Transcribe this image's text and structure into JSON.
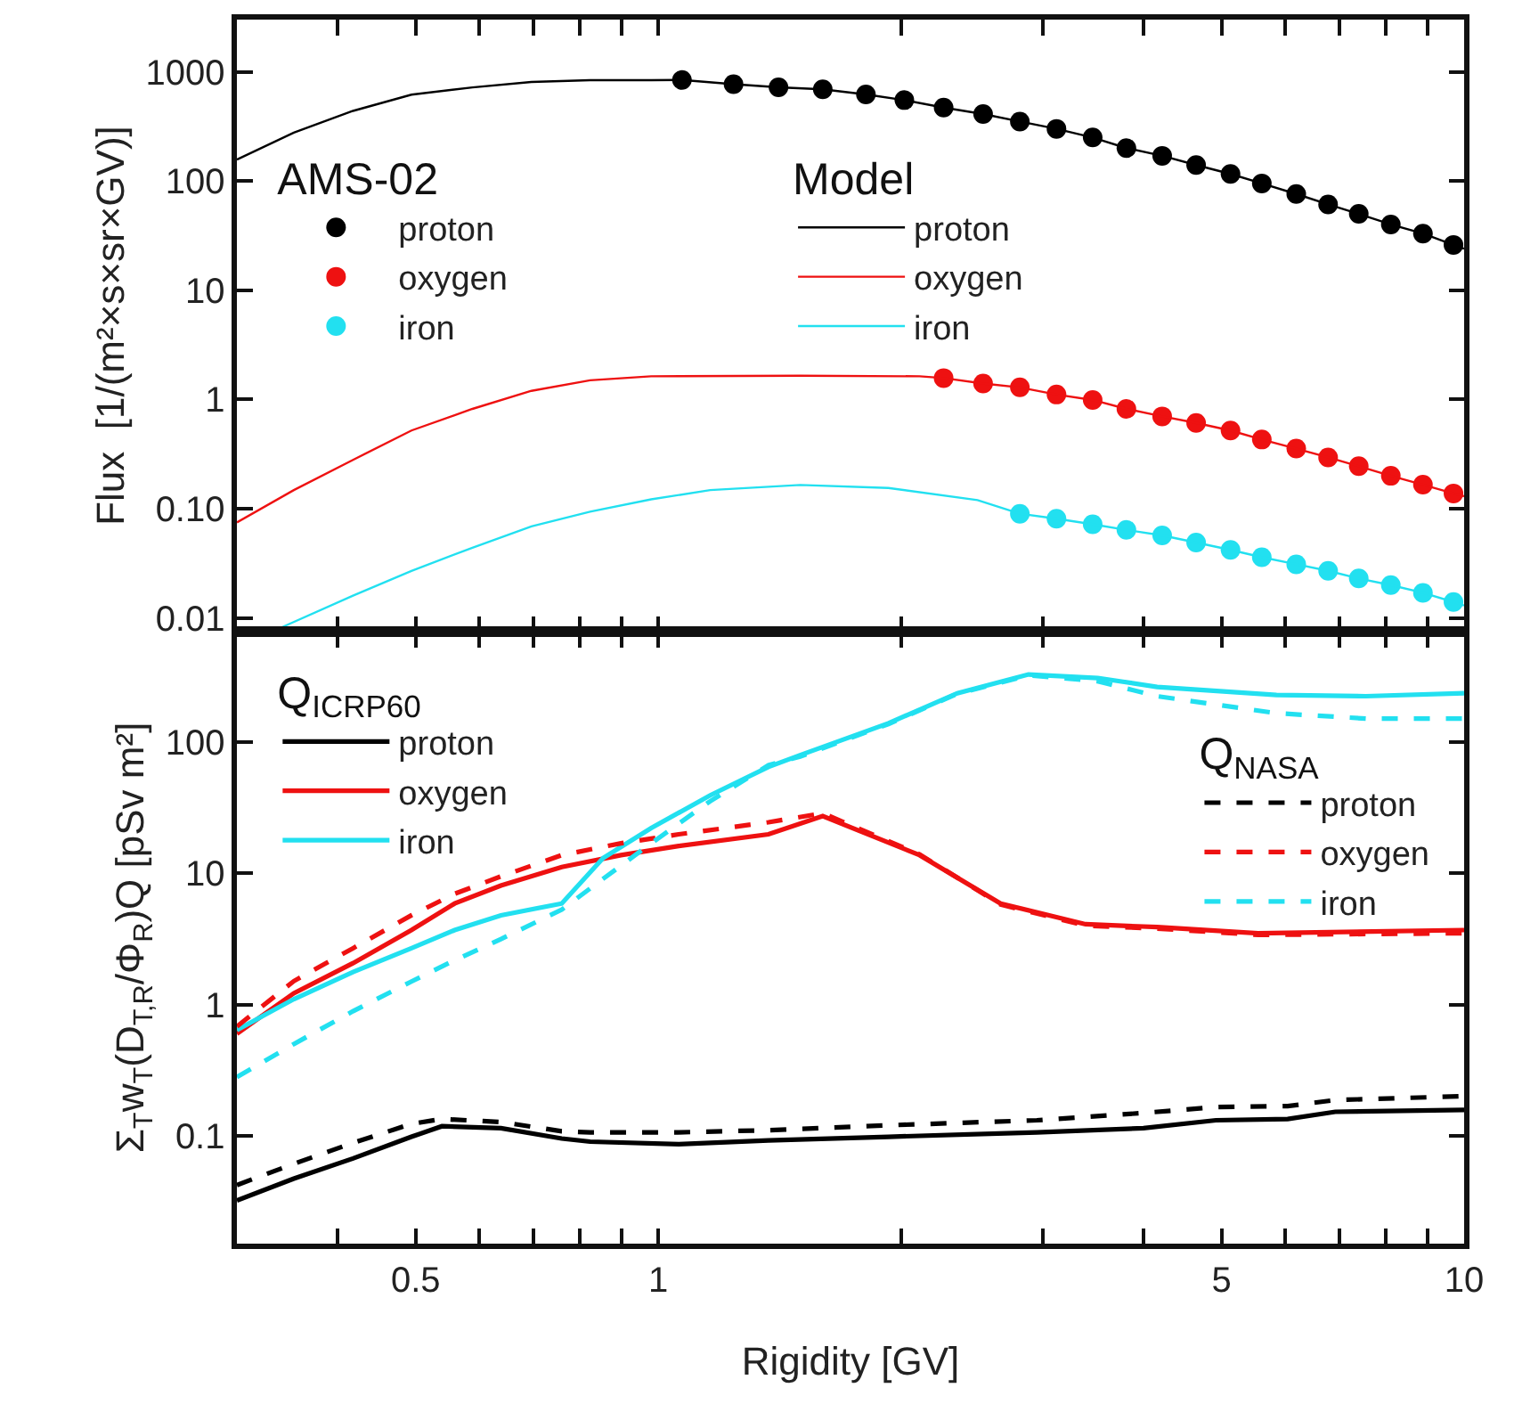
{
  "chart_data": [
    {
      "type": "scatter",
      "ylabel": "Flux  [1/(m²×s×sr×GV)]",
      "log": "xy",
      "xlim": [
        0.3,
        10
      ],
      "ylim": [
        0.0075,
        3000
      ],
      "xticks": [
        {
          "value": 0.3,
          "label": null
        },
        {
          "value": 0.4,
          "label": null
        },
        0.5,
        {
          "value": 0.6,
          "label": null
        },
        {
          "value": 0.7,
          "label": null
        },
        {
          "value": 0.8,
          "label": null
        },
        {
          "value": 0.9,
          "label": null
        },
        1,
        {
          "value": 2,
          "label": null
        },
        {
          "value": 3,
          "label": null
        },
        {
          "value": 4,
          "label": null
        },
        5,
        {
          "value": 6,
          "label": null
        },
        {
          "value": 7,
          "label": null
        },
        {
          "value": 8,
          "label": null
        },
        {
          "value": 9,
          "label": null
        },
        10
      ],
      "yticks": [
        1000,
        100,
        10,
        1,
        {
          "value": 0.1,
          "label": "0.10"
        },
        0.01
      ],
      "tick_labels": "y",
      "legend": [
        "left",
        "center"
      ],
      "legend_title": [
        "AMS-02",
        "Model"
      ],
      "series": [
        {
          "name": "proton",
          "type": "scatter",
          "marker": "circle",
          "color": "#000000",
          "x": [
            1.07,
            1.24,
            1.41,
            1.6,
            1.81,
            2.02,
            2.26,
            2.53,
            2.81,
            3.12,
            3.46,
            3.81,
            4.22,
            4.65,
            5.13,
            5.61,
            6.19,
            6.78,
            7.4,
            8.11,
            8.89,
            9.7
          ],
          "values": [
            840,
            770,
            720,
            690,
            620,
            550,
            470,
            410,
            350,
            300,
            250,
            200,
            170,
            140,
            116,
            95,
            76,
            61,
            50,
            40,
            33,
            26
          ]
        },
        {
          "name": "oxygen",
          "type": "scatter",
          "marker": "circle",
          "color": "#ee1111",
          "x": [
            2.26,
            2.53,
            2.81,
            3.12,
            3.46,
            3.81,
            4.22,
            4.65,
            5.13,
            5.61,
            6.19,
            6.78,
            7.4,
            8.11,
            8.89,
            9.7
          ],
          "values": [
            1.57,
            1.4,
            1.29,
            1.11,
            0.99,
            0.82,
            0.7,
            0.61,
            0.52,
            0.43,
            0.355,
            0.295,
            0.245,
            0.2,
            0.166,
            0.138
          ]
        },
        {
          "name": "iron",
          "type": "scatter",
          "marker": "circle",
          "color": "#22e0f0",
          "x": [
            2.81,
            3.12,
            3.46,
            3.81,
            4.22,
            4.65,
            5.13,
            5.61,
            6.19,
            6.78,
            7.4,
            8.11,
            8.89,
            9.7
          ],
          "values": [
            0.09,
            0.081,
            0.072,
            0.064,
            0.057,
            0.049,
            0.042,
            0.036,
            0.031,
            0.027,
            0.023,
            0.02,
            0.017,
            0.014
          ]
        },
        {
          "name": "proton",
          "type": "line",
          "line_style": "solid",
          "marker": "none",
          "color": "#000000",
          "x": [
            0.3,
            0.353,
            0.418,
            0.494,
            0.588,
            0.696,
            0.823,
            0.98,
            1.07,
            1.24,
            1.41,
            1.6,
            1.81,
            2.02,
            2.26,
            2.53,
            2.81,
            3.12,
            3.46,
            3.81,
            4.22,
            4.65,
            5.13,
            5.61,
            6.19,
            6.78,
            7.4,
            8.11,
            8.89,
            9.7,
            10
          ],
          "values": [
            157,
            277,
            438,
            617,
            718,
            805,
            836,
            836,
            840,
            770,
            720,
            690,
            620,
            550,
            470,
            410,
            350,
            300,
            250,
            200,
            170,
            140,
            116,
            95,
            76,
            61,
            50,
            40,
            33,
            26,
            24
          ]
        },
        {
          "name": "oxygen",
          "type": "line",
          "line_style": "solid",
          "marker": "none",
          "color": "#ee1111",
          "x": [
            0.3,
            0.353,
            0.418,
            0.494,
            0.588,
            0.696,
            0.823,
            0.98,
            1.5,
            2.11,
            2.26,
            2.53,
            2.81,
            3.12,
            3.46,
            3.81,
            4.22,
            4.65,
            5.13,
            5.61,
            6.19,
            6.78,
            7.4,
            8.11,
            8.89,
            9.7,
            10
          ],
          "values": [
            0.075,
            0.148,
            0.28,
            0.52,
            0.82,
            1.2,
            1.5,
            1.63,
            1.65,
            1.63,
            1.57,
            1.4,
            1.29,
            1.11,
            0.99,
            0.82,
            0.7,
            0.61,
            0.52,
            0.43,
            0.355,
            0.295,
            0.245,
            0.2,
            0.166,
            0.138,
            0.13
          ]
        },
        {
          "name": "iron",
          "type": "line",
          "line_style": "solid",
          "marker": "none",
          "color": "#22e0f0",
          "x": [
            0.337,
            0.418,
            0.494,
            0.588,
            0.696,
            0.823,
            0.98,
            1.16,
            1.5,
            1.93,
            2.49,
            2.81,
            3.12,
            3.46,
            3.81,
            4.22,
            4.65,
            5.13,
            5.61,
            6.19,
            6.78,
            7.4,
            8.11,
            8.89,
            9.7,
            10
          ],
          "values": [
            0.0079,
            0.016,
            0.027,
            0.044,
            0.069,
            0.094,
            0.122,
            0.148,
            0.165,
            0.155,
            0.12,
            0.09,
            0.081,
            0.072,
            0.064,
            0.057,
            0.049,
            0.042,
            0.036,
            0.031,
            0.027,
            0.023,
            0.02,
            0.017,
            0.014,
            0.013
          ]
        }
      ]
    },
    {
      "type": "line",
      "xlabel": "Rigidity [GV]",
      "ylabel": "Σ$_{T}$w$_{T}$(D$_{T,R}$/Φ$_{R}$)Q [pSv m²]",
      "log": "xy",
      "xlim": [
        0.3,
        10
      ],
      "ylim": [
        0.015,
        700
      ],
      "xticks": [
        {
          "value": 0.3,
          "label": null
        },
        {
          "value": 0.4,
          "label": null
        },
        0.5,
        {
          "value": 0.6,
          "label": null
        },
        {
          "value": 0.7,
          "label": null
        },
        {
          "value": 0.8,
          "label": null
        },
        {
          "value": 0.9,
          "label": null
        },
        1,
        {
          "value": 2,
          "label": null
        },
        {
          "value": 3,
          "label": null
        },
        {
          "value": 4,
          "label": null
        },
        5,
        {
          "value": 6,
          "label": null
        },
        {
          "value": 7,
          "label": null
        },
        {
          "value": 8,
          "label": null
        },
        {
          "value": 9,
          "label": null
        },
        10
      ],
      "yticks": [
        100,
        10,
        1,
        0.1
      ],
      "legend": [
        "top left",
        "top right"
      ],
      "legend_title": [
        "Q$_{ICRP60}$",
        "Q$_{NASA}$"
      ],
      "series": [
        {
          "name": "proton",
          "line_style": "solid",
          "color": "#000000",
          "x": [
            0.3,
            0.353,
            0.418,
            0.494,
            0.539,
            0.638,
            0.759,
            0.823,
            1.06,
            1.37,
            1.93,
            2.95,
            4.0,
            4.92,
            6.04,
            6.92,
            10
          ],
          "values": [
            0.032,
            0.047,
            0.067,
            0.098,
            0.118,
            0.114,
            0.095,
            0.09,
            0.086,
            0.092,
            0.098,
            0.106,
            0.114,
            0.131,
            0.134,
            0.152,
            0.157
          ]
        },
        {
          "name": "oxygen",
          "line_style": "solid",
          "color": "#ee1111",
          "x": [
            0.3,
            0.353,
            0.418,
            0.494,
            0.559,
            0.638,
            0.759,
            0.899,
            1.06,
            1.37,
            1.6,
            2.11,
            2.66,
            3.39,
            4.16,
            5.55,
            10
          ],
          "values": [
            0.6,
            1.22,
            2.07,
            3.7,
            5.9,
            8.1,
            11.2,
            13.8,
            16.2,
            19.9,
            27.4,
            13.8,
            5.9,
            4.1,
            3.9,
            3.5,
            3.7
          ]
        },
        {
          "name": "iron",
          "line_style": "solid",
          "color": "#22e0f0",
          "x": [
            0.3,
            0.353,
            0.418,
            0.494,
            0.559,
            0.638,
            0.759,
            0.854,
            0.98,
            1.16,
            1.37,
            1.5,
            1.93,
            2.35,
            2.88,
            3.51,
            4.16,
            5.85,
            7.55,
            10
          ],
          "values": [
            0.64,
            1.1,
            1.77,
            2.69,
            3.7,
            4.8,
            5.9,
            13.1,
            22.2,
            39.5,
            65,
            80,
            140,
            237,
            330,
            310,
            265,
            230,
            225,
            237
          ]
        },
        {
          "name": "proton",
          "line_style": "dashed",
          "color": "#000000",
          "x": [
            0.3,
            0.353,
            0.418,
            0.494,
            0.539,
            0.638,
            0.759,
            0.823,
            1.06,
            1.37,
            1.93,
            2.95,
            4.0,
            4.92,
            6.04,
            6.92,
            10
          ],
          "values": [
            0.042,
            0.061,
            0.088,
            0.123,
            0.134,
            0.127,
            0.108,
            0.106,
            0.106,
            0.11,
            0.12,
            0.131,
            0.149,
            0.165,
            0.168,
            0.187,
            0.2
          ]
        },
        {
          "name": "oxygen",
          "line_style": "dashed",
          "color": "#ee1111",
          "x": [
            0.3,
            0.353,
            0.418,
            0.494,
            0.559,
            0.638,
            0.759,
            0.899,
            1.06,
            1.37,
            1.6,
            2.11,
            2.66,
            3.39,
            4.16,
            5.55,
            10
          ],
          "values": [
            0.68,
            1.51,
            2.69,
            4.8,
            7.0,
            9.5,
            13.8,
            17.0,
            19.9,
            24.6,
            28.8,
            14.0,
            5.8,
            4.0,
            3.8,
            3.4,
            3.5
          ]
        },
        {
          "name": "iron",
          "line_style": "dashed",
          "color": "#22e0f0",
          "x": [
            0.3,
            0.353,
            0.418,
            0.494,
            0.559,
            0.638,
            0.759,
            0.854,
            0.98,
            1.16,
            1.37,
            1.5,
            1.93,
            2.35,
            2.88,
            3.51,
            4.16,
            5.85,
            7.55,
            10
          ],
          "values": [
            0.28,
            0.5,
            0.89,
            1.5,
            2.18,
            3.16,
            5.3,
            9.1,
            17,
            35.6,
            67,
            78,
            138,
            235,
            325,
            293,
            225,
            167,
            152,
            152
          ]
        }
      ]
    }
  ]
}
